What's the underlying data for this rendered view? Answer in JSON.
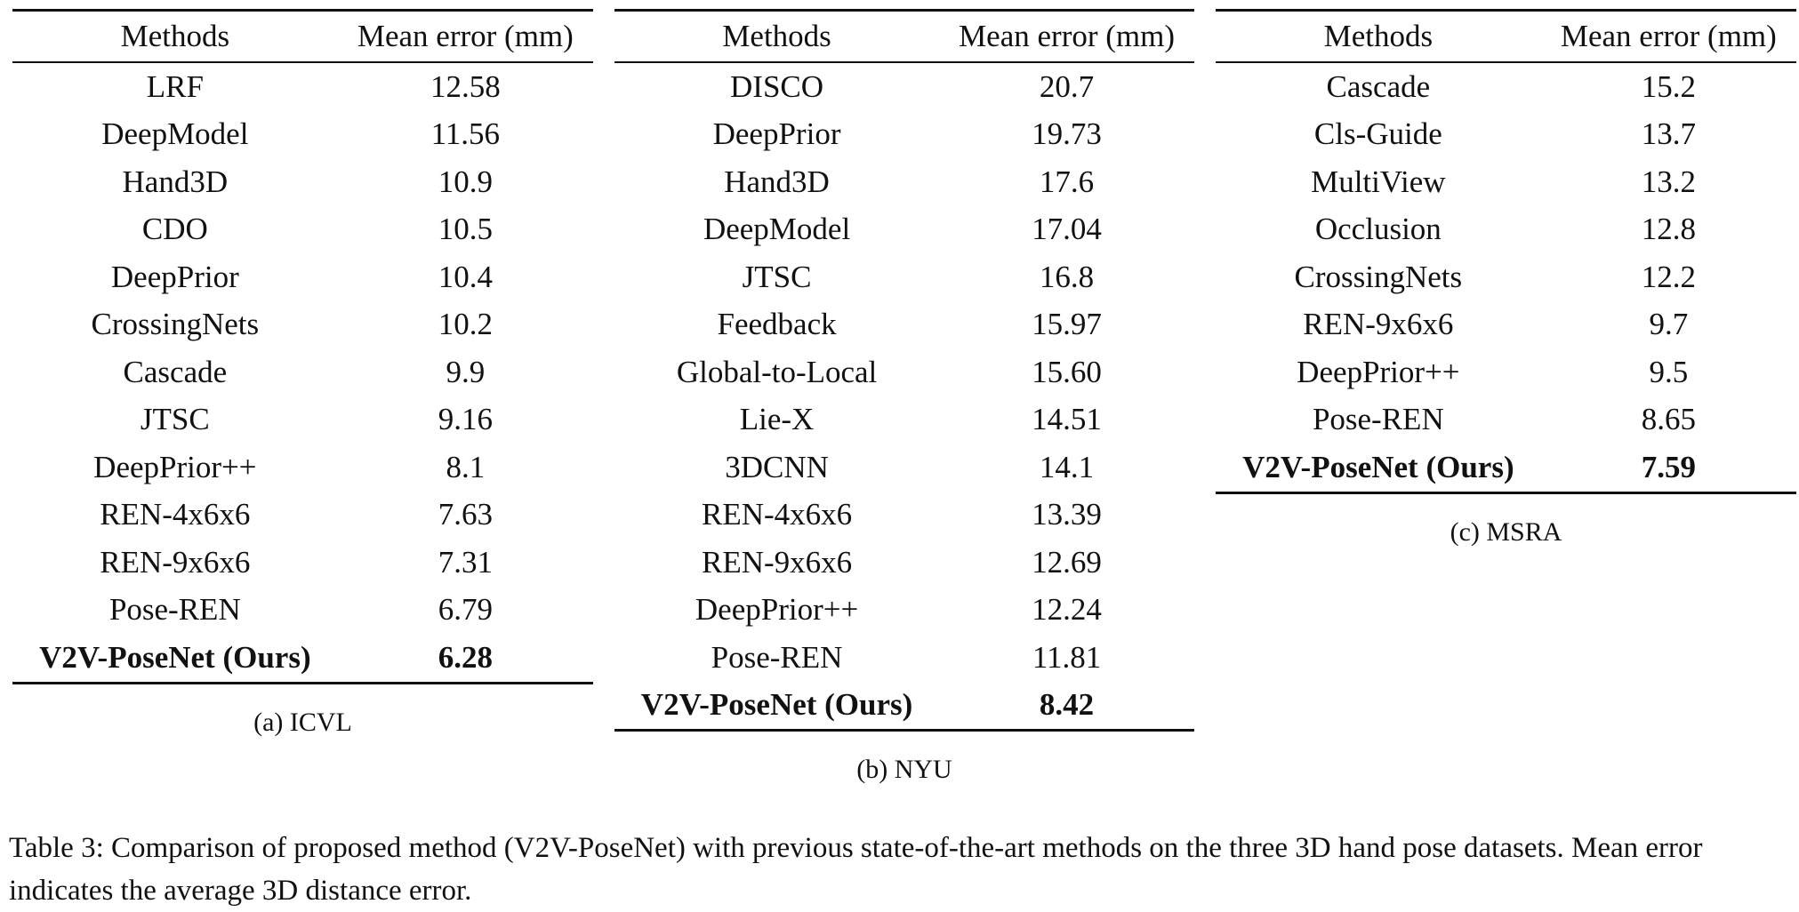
{
  "tables": {
    "icvl": {
      "headers": [
        "Methods",
        "Mean error (mm)"
      ],
      "rows": [
        [
          "LRF",
          "12.58"
        ],
        [
          "DeepModel",
          "11.56"
        ],
        [
          "Hand3D",
          "10.9"
        ],
        [
          "CDO",
          "10.5"
        ],
        [
          "DeepPrior",
          "10.4"
        ],
        [
          "CrossingNets",
          "10.2"
        ],
        [
          "Cascade",
          "9.9"
        ],
        [
          "JTSC",
          "9.16"
        ],
        [
          "DeepPrior++",
          "8.1"
        ],
        [
          "REN-4x6x6",
          "7.63"
        ],
        [
          "REN-9x6x6",
          "7.31"
        ],
        [
          "Pose-REN",
          "6.79"
        ]
      ],
      "ours": [
        "V2V-PoseNet (Ours)",
        "6.28"
      ],
      "subcaption": "(a) ICVL"
    },
    "nyu": {
      "headers": [
        "Methods",
        "Mean error (mm)"
      ],
      "rows": [
        [
          "DISCO",
          "20.7"
        ],
        [
          "DeepPrior",
          "19.73"
        ],
        [
          "Hand3D",
          "17.6"
        ],
        [
          "DeepModel",
          "17.04"
        ],
        [
          "JTSC",
          "16.8"
        ],
        [
          "Feedback",
          "15.97"
        ],
        [
          "Global-to-Local",
          "15.60"
        ],
        [
          "Lie-X",
          "14.51"
        ],
        [
          "3DCNN",
          "14.1"
        ],
        [
          "REN-4x6x6",
          "13.39"
        ],
        [
          "REN-9x6x6",
          "12.69"
        ],
        [
          "DeepPrior++",
          "12.24"
        ],
        [
          "Pose-REN",
          "11.81"
        ]
      ],
      "ours": [
        "V2V-PoseNet (Ours)",
        "8.42"
      ],
      "subcaption": "(b) NYU"
    },
    "msra": {
      "headers": [
        "Methods",
        "Mean error (mm)"
      ],
      "rows": [
        [
          "Cascade",
          "15.2"
        ],
        [
          "Cls-Guide",
          "13.7"
        ],
        [
          "MultiView",
          "13.2"
        ],
        [
          "Occlusion",
          "12.8"
        ],
        [
          "CrossingNets",
          "12.2"
        ],
        [
          "REN-9x6x6",
          "9.7"
        ],
        [
          "DeepPrior++",
          "9.5"
        ],
        [
          "Pose-REN",
          "8.65"
        ]
      ],
      "ours": [
        "V2V-PoseNet (Ours)",
        "7.59"
      ],
      "subcaption": "(c) MSRA"
    }
  },
  "caption": "Table 3: Comparison of proposed method (V2V-PoseNet) with previous state-of-the-art methods on the three 3D hand pose datasets. Mean error indicates the average 3D distance error."
}
